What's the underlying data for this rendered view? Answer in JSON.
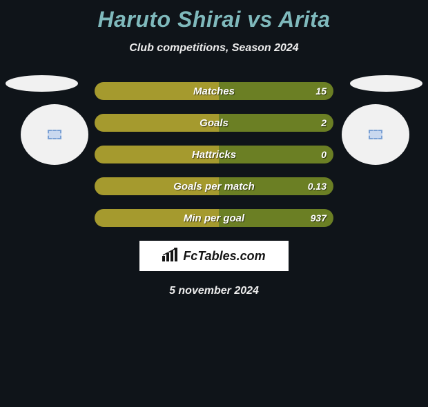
{
  "title_color": "#7fb9bc",
  "title": "Haruto Shirai vs Arita",
  "subtitle": "Club competitions, Season 2024",
  "left_color": "#a59a2e",
  "right_color": "#6b7f24",
  "background_color": "#0f1419",
  "bars": [
    {
      "label": "Matches",
      "left_pct": 52,
      "right_pct": 48,
      "left_val": "",
      "right_val": "15"
    },
    {
      "label": "Goals",
      "left_pct": 52,
      "right_pct": 48,
      "left_val": "",
      "right_val": "2"
    },
    {
      "label": "Hattricks",
      "left_pct": 52,
      "right_pct": 48,
      "left_val": "",
      "right_val": "0"
    },
    {
      "label": "Goals per match",
      "left_pct": 52,
      "right_pct": 48,
      "left_val": "",
      "right_val": "0.13"
    },
    {
      "label": "Min per goal",
      "left_pct": 52,
      "right_pct": 48,
      "left_val": "",
      "right_val": "937"
    }
  ],
  "brand": "FcTables.com",
  "date": "5 november 2024"
}
